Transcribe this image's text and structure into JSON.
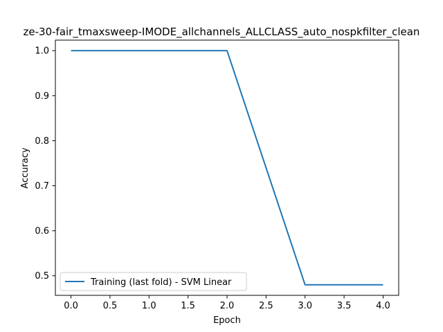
{
  "chart_data": {
    "type": "line",
    "title": "ze-30-fair_tmaxsweep-IMODE_allchannels_ALLCLASS_auto_nospkfilter_clean",
    "xlabel": "Epoch",
    "ylabel": "Accuracy",
    "xlim": [
      -0.2,
      4.2
    ],
    "ylim": [
      0.4566,
      1.0234
    ],
    "x_ticks": [
      "0.0",
      "0.5",
      "1.0",
      "1.5",
      "2.0",
      "2.5",
      "3.0",
      "3.5",
      "4.0"
    ],
    "y_ticks": [
      "0.5",
      "0.6",
      "0.7",
      "0.8",
      "0.9",
      "1.0"
    ],
    "grid": false,
    "legend_position": "lower-left",
    "series": [
      {
        "name": "Training (last fold) - SVM Linear",
        "color": "#1f77b4",
        "x": [
          0,
          1,
          2,
          3,
          4
        ],
        "y": [
          1.0,
          1.0,
          1.0,
          0.48,
          0.48
        ]
      }
    ]
  }
}
